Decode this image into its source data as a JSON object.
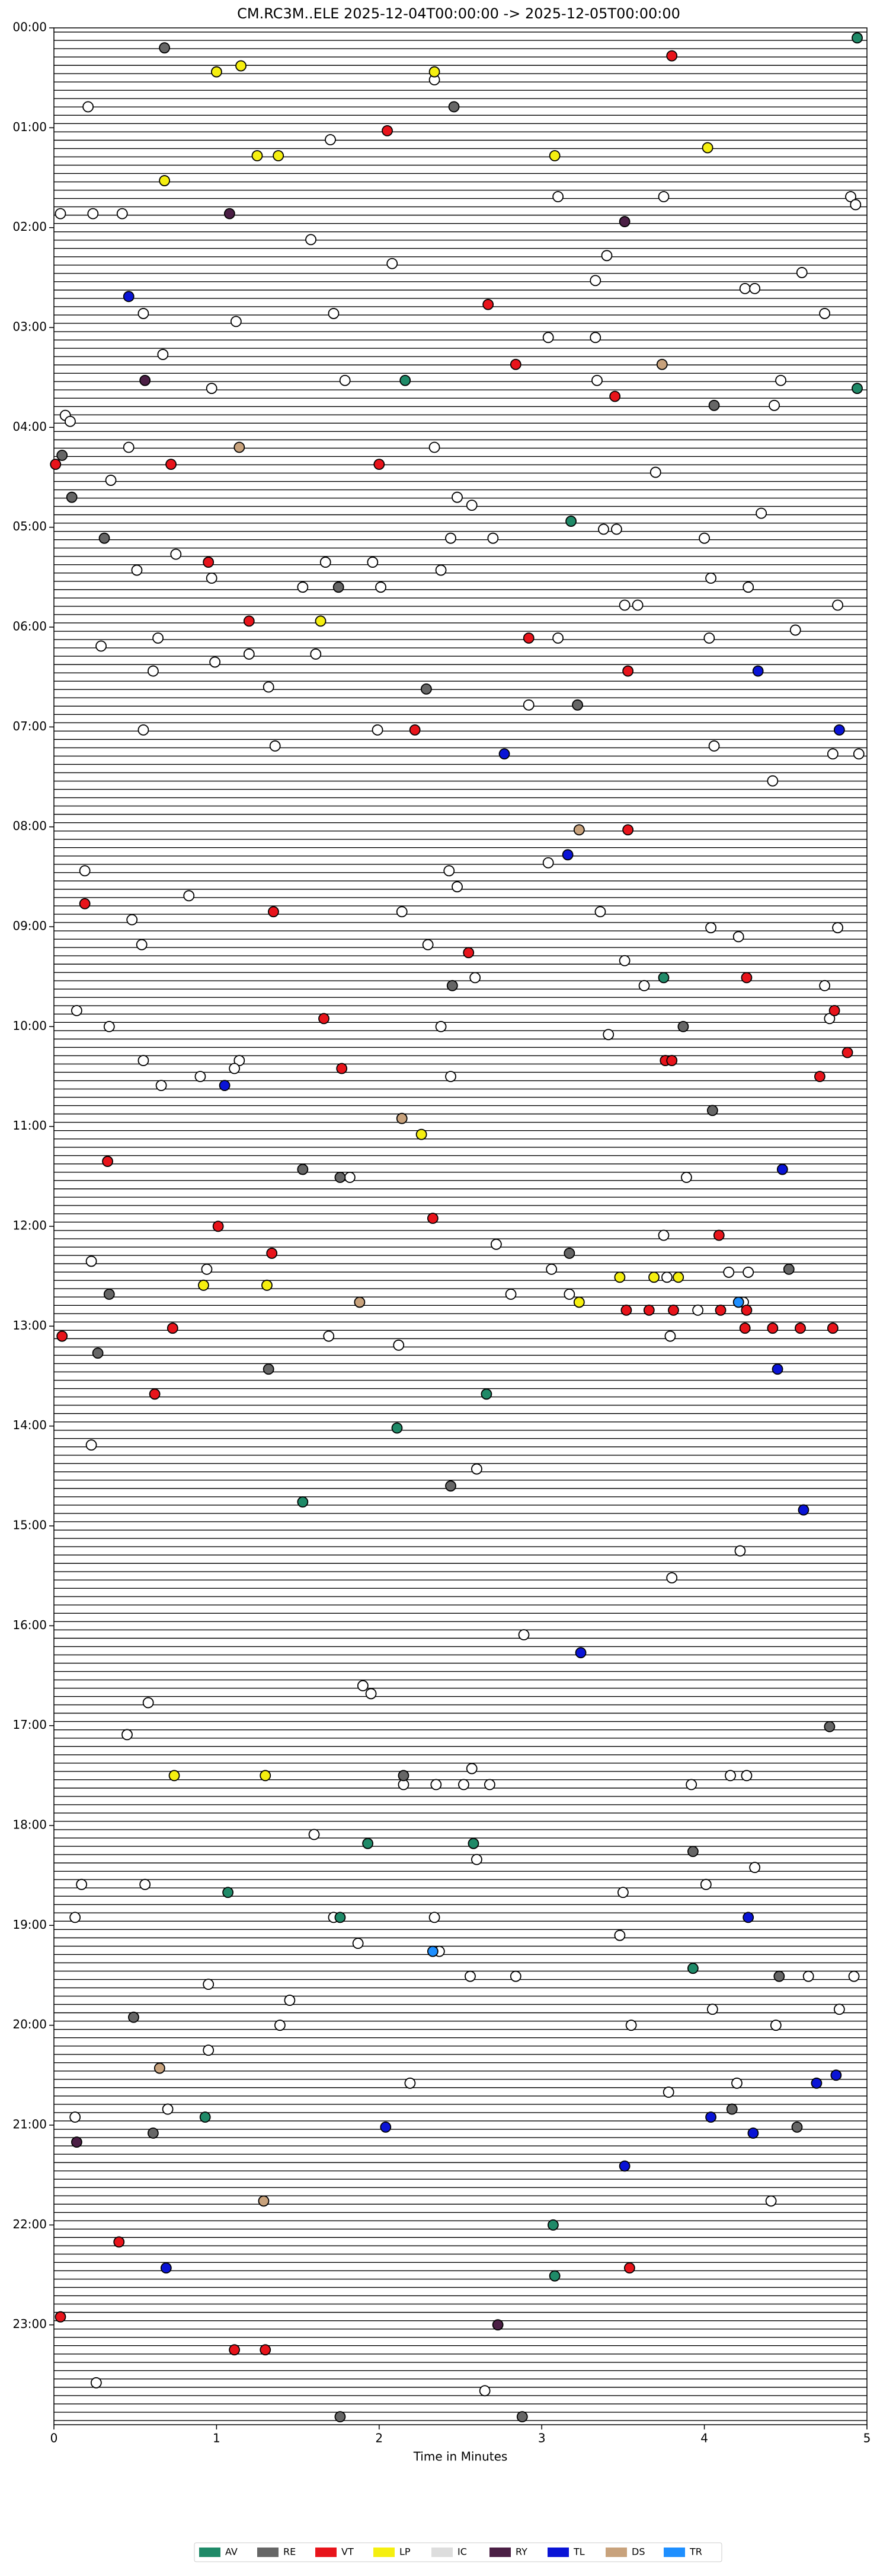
{
  "chart_data": {
    "type": "scatter",
    "title": "CM.RC3M..ELE  2025-12-04T00:00:00 -> 2025-12-05T00:00:00",
    "xlabel": "Time in Minutes",
    "xlim": [
      0,
      5
    ],
    "xticks": [
      0,
      1,
      2,
      3,
      4,
      5
    ],
    "ylim": [
      24,
      0
    ],
    "yticks": [
      {
        "value": 0,
        "label": "00:00"
      },
      {
        "value": 1,
        "label": "01:00"
      },
      {
        "value": 2,
        "label": "02:00"
      },
      {
        "value": 3,
        "label": "03:00"
      },
      {
        "value": 4,
        "label": "04:00"
      },
      {
        "value": 5,
        "label": "05:00"
      },
      {
        "value": 6,
        "label": "06:00"
      },
      {
        "value": 7,
        "label": "07:00"
      },
      {
        "value": 8,
        "label": "08:00"
      },
      {
        "value": 9,
        "label": "09:00"
      },
      {
        "value": 10,
        "label": "10:00"
      },
      {
        "value": 11,
        "label": "11:00"
      },
      {
        "value": 12,
        "label": "12:00"
      },
      {
        "value": 13,
        "label": "13:00"
      },
      {
        "value": 14,
        "label": "14:00"
      },
      {
        "value": 15,
        "label": "15:00"
      },
      {
        "value": 16,
        "label": "16:00"
      },
      {
        "value": 17,
        "label": "17:00"
      },
      {
        "value": 18,
        "label": "18:00"
      },
      {
        "value": 19,
        "label": "19:00"
      },
      {
        "value": 20,
        "label": "20:00"
      },
      {
        "value": 21,
        "label": "21:00"
      },
      {
        "value": 22,
        "label": "22:00"
      },
      {
        "value": 23,
        "label": "23:00"
      }
    ],
    "legend": "bottom",
    "series": [
      {
        "color": "#ffffff",
        "x": [
          2.34,
          0.21,
          1.7,
          3.1,
          3.75,
          4.9,
          4.93,
          0.04,
          0.24,
          0.42,
          1.58,
          3.4,
          2.08,
          4.6,
          3.33,
          4.25,
          4.31,
          0.55,
          1.72,
          4.74,
          1.12,
          3.33,
          3.04,
          0.67,
          1.79,
          3.34,
          4.47,
          0.97,
          4.43,
          0.07,
          0.1,
          0.46,
          2.34,
          3.7,
          0.35,
          2.48,
          2.57,
          4.35,
          3.38,
          3.46,
          2.44,
          2.7,
          4.0,
          0.75,
          1.67,
          1.96,
          0.51,
          2.38,
          0.97,
          4.04,
          1.53,
          2.01,
          4.27,
          3.51,
          3.59,
          4.82,
          4.56,
          0.64,
          3.1,
          4.03,
          0.29,
          1.2,
          1.61,
          0.99,
          0.61,
          1.32,
          2.92,
          0.55,
          1.99,
          1.36,
          4.06,
          4.79,
          4.95,
          4.42,
          3.04,
          0.19,
          2.43,
          2.48,
          0.83,
          2.14,
          3.36,
          0.48,
          4.82,
          4.04,
          4.21,
          0.54,
          2.3,
          3.51,
          2.59,
          3.63,
          4.74,
          0.14,
          4.77,
          0.34,
          2.38,
          3.41,
          0.55,
          1.14,
          1.11,
          0.9,
          2.44,
          0.66,
          1.82,
          3.89,
          3.75,
          2.72,
          0.23,
          0.94,
          3.06,
          3.77,
          4.15,
          4.27,
          2.81,
          3.17,
          4.24,
          3.96,
          1.69,
          3.79,
          2.12,
          0.23,
          2.6,
          4.22,
          3.8,
          2.89,
          1.9,
          1.95,
          0.58,
          0.45,
          2.57,
          2.15,
          2.35,
          2.52,
          2.68,
          3.92,
          4.16,
          4.26,
          1.6,
          2.6,
          4.31,
          0.17,
          0.56,
          4.01,
          3.5,
          0.13,
          1.72,
          2.34,
          3.48,
          1.87,
          2.37,
          2.84,
          2.56,
          4.64,
          4.92,
          0.95,
          1.45,
          4.05,
          4.83,
          1.39,
          3.55,
          4.44,
          0.95,
          4.2,
          2.19,
          3.78,
          0.7,
          0.13,
          4.41,
          0.26,
          2.65
        ],
        "values": [
          0.52,
          0.79,
          1.12,
          1.69,
          1.69,
          1.69,
          1.77,
          1.86,
          1.86,
          1.86,
          2.12,
          2.28,
          2.36,
          2.45,
          2.53,
          2.61,
          2.61,
          2.86,
          2.86,
          2.86,
          2.94,
          3.1,
          3.1,
          3.27,
          3.53,
          3.53,
          3.53,
          3.61,
          3.78,
          3.88,
          3.94,
          4.2,
          4.2,
          4.45,
          4.53,
          4.7,
          4.78,
          4.86,
          5.02,
          5.02,
          5.11,
          5.11,
          5.11,
          5.27,
          5.35,
          5.35,
          5.43,
          5.43,
          5.51,
          5.51,
          5.6,
          5.6,
          5.6,
          5.78,
          5.78,
          5.78,
          6.03,
          6.11,
          6.11,
          6.11,
          6.19,
          6.27,
          6.27,
          6.35,
          6.44,
          6.6,
          6.78,
          7.03,
          7.03,
          7.19,
          7.19,
          7.27,
          7.27,
          7.54,
          8.36,
          8.44,
          8.44,
          8.6,
          8.69,
          8.85,
          8.85,
          8.93,
          9.01,
          9.01,
          9.1,
          9.18,
          9.18,
          9.34,
          9.51,
          9.59,
          9.59,
          9.84,
          9.92,
          10.0,
          10.0,
          10.08,
          10.34,
          10.34,
          10.42,
          10.5,
          10.5,
          10.59,
          11.51,
          11.51,
          12.09,
          12.18,
          12.35,
          12.43,
          12.43,
          12.51,
          12.46,
          12.46,
          12.68,
          12.68,
          12.76,
          12.84,
          13.1,
          13.1,
          13.19,
          14.19,
          14.43,
          15.25,
          15.52,
          16.09,
          16.6,
          16.68,
          16.77,
          17.09,
          17.43,
          17.59,
          17.59,
          17.59,
          17.59,
          17.59,
          17.5,
          17.5,
          18.09,
          18.34,
          18.42,
          18.59,
          18.59,
          18.59,
          18.67,
          18.92,
          18.92,
          18.92,
          19.1,
          19.18,
          19.26,
          19.51,
          19.51,
          19.51,
          19.51,
          19.59,
          19.75,
          19.84,
          19.84,
          20.0,
          20.0,
          20.0,
          20.25,
          20.58,
          20.58,
          20.67,
          20.84,
          20.92,
          21.76,
          23.58,
          23.66
        ]
      },
      {
        "name": "AV",
        "color": "#1f8a68",
        "x": [
          4.94,
          2.16,
          4.94,
          3.18,
          3.75,
          2.66,
          2.11,
          1.53,
          1.93,
          2.58,
          1.07,
          1.76,
          3.93,
          0.93,
          3.07,
          3.08
        ],
        "values": [
          0.1,
          3.53,
          3.61,
          4.94,
          9.51,
          13.68,
          14.02,
          14.76,
          18.18,
          18.18,
          18.67,
          18.92,
          19.43,
          20.92,
          22.0,
          22.51
        ]
      },
      {
        "name": "RE",
        "color": "#666666",
        "x": [
          0.68,
          2.46,
          4.06,
          0.05,
          0.11,
          0.31,
          1.75,
          2.29,
          3.22,
          2.45,
          3.87,
          4.05,
          1.53,
          1.76,
          3.17,
          4.52,
          0.34,
          0.27,
          1.32,
          2.44,
          4.77,
          2.15,
          3.93,
          4.46,
          0.49,
          4.17,
          0.61,
          4.57,
          1.76,
          2.88
        ],
        "values": [
          0.2,
          0.79,
          3.78,
          4.28,
          4.7,
          5.11,
          5.6,
          6.62,
          6.78,
          9.59,
          10.0,
          10.84,
          11.43,
          11.51,
          12.27,
          12.43,
          12.68,
          13.27,
          13.43,
          14.6,
          17.01,
          17.5,
          18.26,
          19.51,
          19.92,
          20.84,
          21.08,
          21.02,
          23.92,
          23.92
        ]
      },
      {
        "name": "VT",
        "color": "#e8141b",
        "x": [
          3.8,
          2.05,
          2.67,
          2.84,
          3.45,
          0.01,
          0.72,
          2.0,
          0.95,
          1.2,
          2.92,
          3.53,
          2.22,
          3.53,
          0.19,
          1.35,
          2.55,
          4.26,
          1.66,
          4.8,
          4.88,
          3.76,
          3.8,
          1.77,
          4.71,
          0.33,
          2.33,
          1.01,
          4.09,
          1.34,
          3.52,
          3.66,
          3.81,
          4.1,
          4.26,
          0.73,
          0.05,
          4.25,
          4.42,
          4.59,
          4.79,
          0.62,
          0.4,
          3.54,
          0.04,
          1.11,
          1.3
        ],
        "values": [
          0.28,
          1.03,
          2.77,
          3.37,
          3.69,
          4.37,
          4.37,
          4.37,
          5.35,
          5.94,
          6.11,
          6.44,
          7.03,
          8.03,
          8.77,
          8.85,
          9.26,
          9.51,
          9.92,
          9.84,
          10.26,
          10.34,
          10.34,
          10.42,
          10.5,
          11.35,
          11.92,
          12.0,
          12.09,
          12.27,
          12.84,
          12.84,
          12.84,
          12.84,
          12.84,
          13.02,
          13.1,
          13.02,
          13.02,
          13.02,
          13.02,
          13.68,
          22.17,
          22.43,
          22.92,
          23.25,
          23.25
        ]
      },
      {
        "name": "LP",
        "color": "#f5ef10",
        "x": [
          1.15,
          1.0,
          2.34,
          4.02,
          1.25,
          1.38,
          3.08,
          0.68,
          1.64,
          2.26,
          3.48,
          3.69,
          3.84,
          0.92,
          1.31,
          3.23,
          0.74,
          1.3
        ],
        "values": [
          0.38,
          0.44,
          0.44,
          1.2,
          1.28,
          1.28,
          1.28,
          1.53,
          5.94,
          11.08,
          12.51,
          12.51,
          12.51,
          12.59,
          12.59,
          12.76,
          17.5,
          17.5
        ]
      },
      {
        "name": "IC",
        "color": "#dddddd",
        "x": [],
        "values": []
      },
      {
        "name": "RY",
        "color": "#4b1f45",
        "x": [
          1.08,
          3.51,
          0.56,
          0.14,
          2.73
        ],
        "values": [
          1.86,
          1.94,
          3.53,
          21.17,
          23.0
        ]
      },
      {
        "name": "TL",
        "color": "#0a14d6",
        "x": [
          0.46,
          4.33,
          4.83,
          2.77,
          3.16,
          1.05,
          4.48,
          4.45,
          4.61,
          3.24,
          4.27,
          4.81,
          4.69,
          4.04,
          2.04,
          4.3,
          3.51,
          0.69
        ],
        "values": [
          2.69,
          6.44,
          7.03,
          7.27,
          8.28,
          10.59,
          11.43,
          13.43,
          14.84,
          16.27,
          18.92,
          20.5,
          20.58,
          20.92,
          21.02,
          21.08,
          21.41,
          22.43
        ]
      },
      {
        "name": "DS",
        "color": "#c8a27c",
        "x": [
          3.74,
          1.14,
          3.23,
          2.14,
          1.88,
          0.65,
          1.29
        ],
        "values": [
          3.37,
          4.2,
          8.03,
          10.92,
          12.76,
          20.43,
          21.76
        ]
      },
      {
        "name": "TR",
        "color": "#1e8fff",
        "x": [
          4.21,
          2.33
        ],
        "values": [
          12.76,
          19.26
        ]
      }
    ]
  }
}
